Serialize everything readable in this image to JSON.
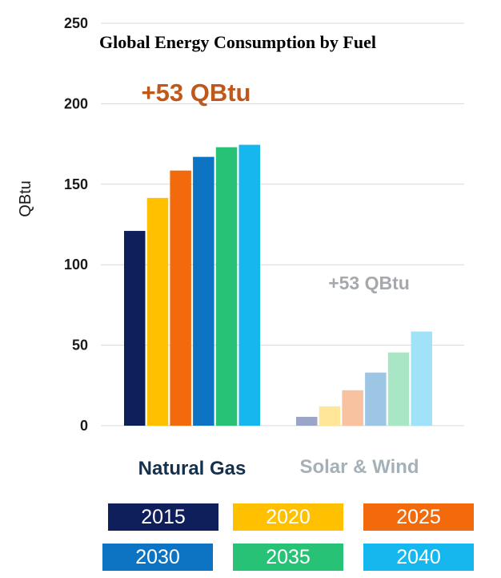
{
  "chart_data": {
    "type": "bar",
    "title": "Global Energy Consumption by Fuel",
    "ylabel": "QBtu",
    "xlabel": "",
    "ylim": [
      0,
      250
    ],
    "yticks": [
      "0",
      "50",
      "100",
      "150",
      "200",
      "250"
    ],
    "categories": [
      "Natural Gas",
      "Solar & Wind"
    ],
    "category_colors": [
      "#14304d",
      "#a5b1b8"
    ],
    "series": [
      {
        "name": "2015",
        "color": "#0e1f5b",
        "values": [
          121,
          5.5
        ]
      },
      {
        "name": "2020",
        "color": "#ffc000",
        "values": [
          141.5,
          12
        ]
      },
      {
        "name": "2025",
        "color": "#f26a0c",
        "values": [
          158.5,
          22
        ]
      },
      {
        "name": "2030",
        "color": "#0c74c2",
        "values": [
          167,
          33
        ]
      },
      {
        "name": "2035",
        "color": "#27c276",
        "values": [
          173,
          45.5
        ]
      },
      {
        "name": "2040",
        "color": "#16b6ef",
        "values": [
          174.5,
          58.5
        ]
      }
    ],
    "series_colors_faded": [
      "#9aa5c8",
      "#ffe699",
      "#f8c19f",
      "#9dc6e4",
      "#a8e6c6",
      "#a0e2f8"
    ],
    "annotations": [
      {
        "text": "+53 QBtu",
        "color": "#c0581b",
        "category": "Natural Gas"
      },
      {
        "text": "+53 QBtu",
        "color": "#a5a9ad",
        "category": "Solar & Wind"
      }
    ],
    "legend": [
      "2015",
      "2020",
      "2025",
      "2030",
      "2035",
      "2040"
    ]
  }
}
